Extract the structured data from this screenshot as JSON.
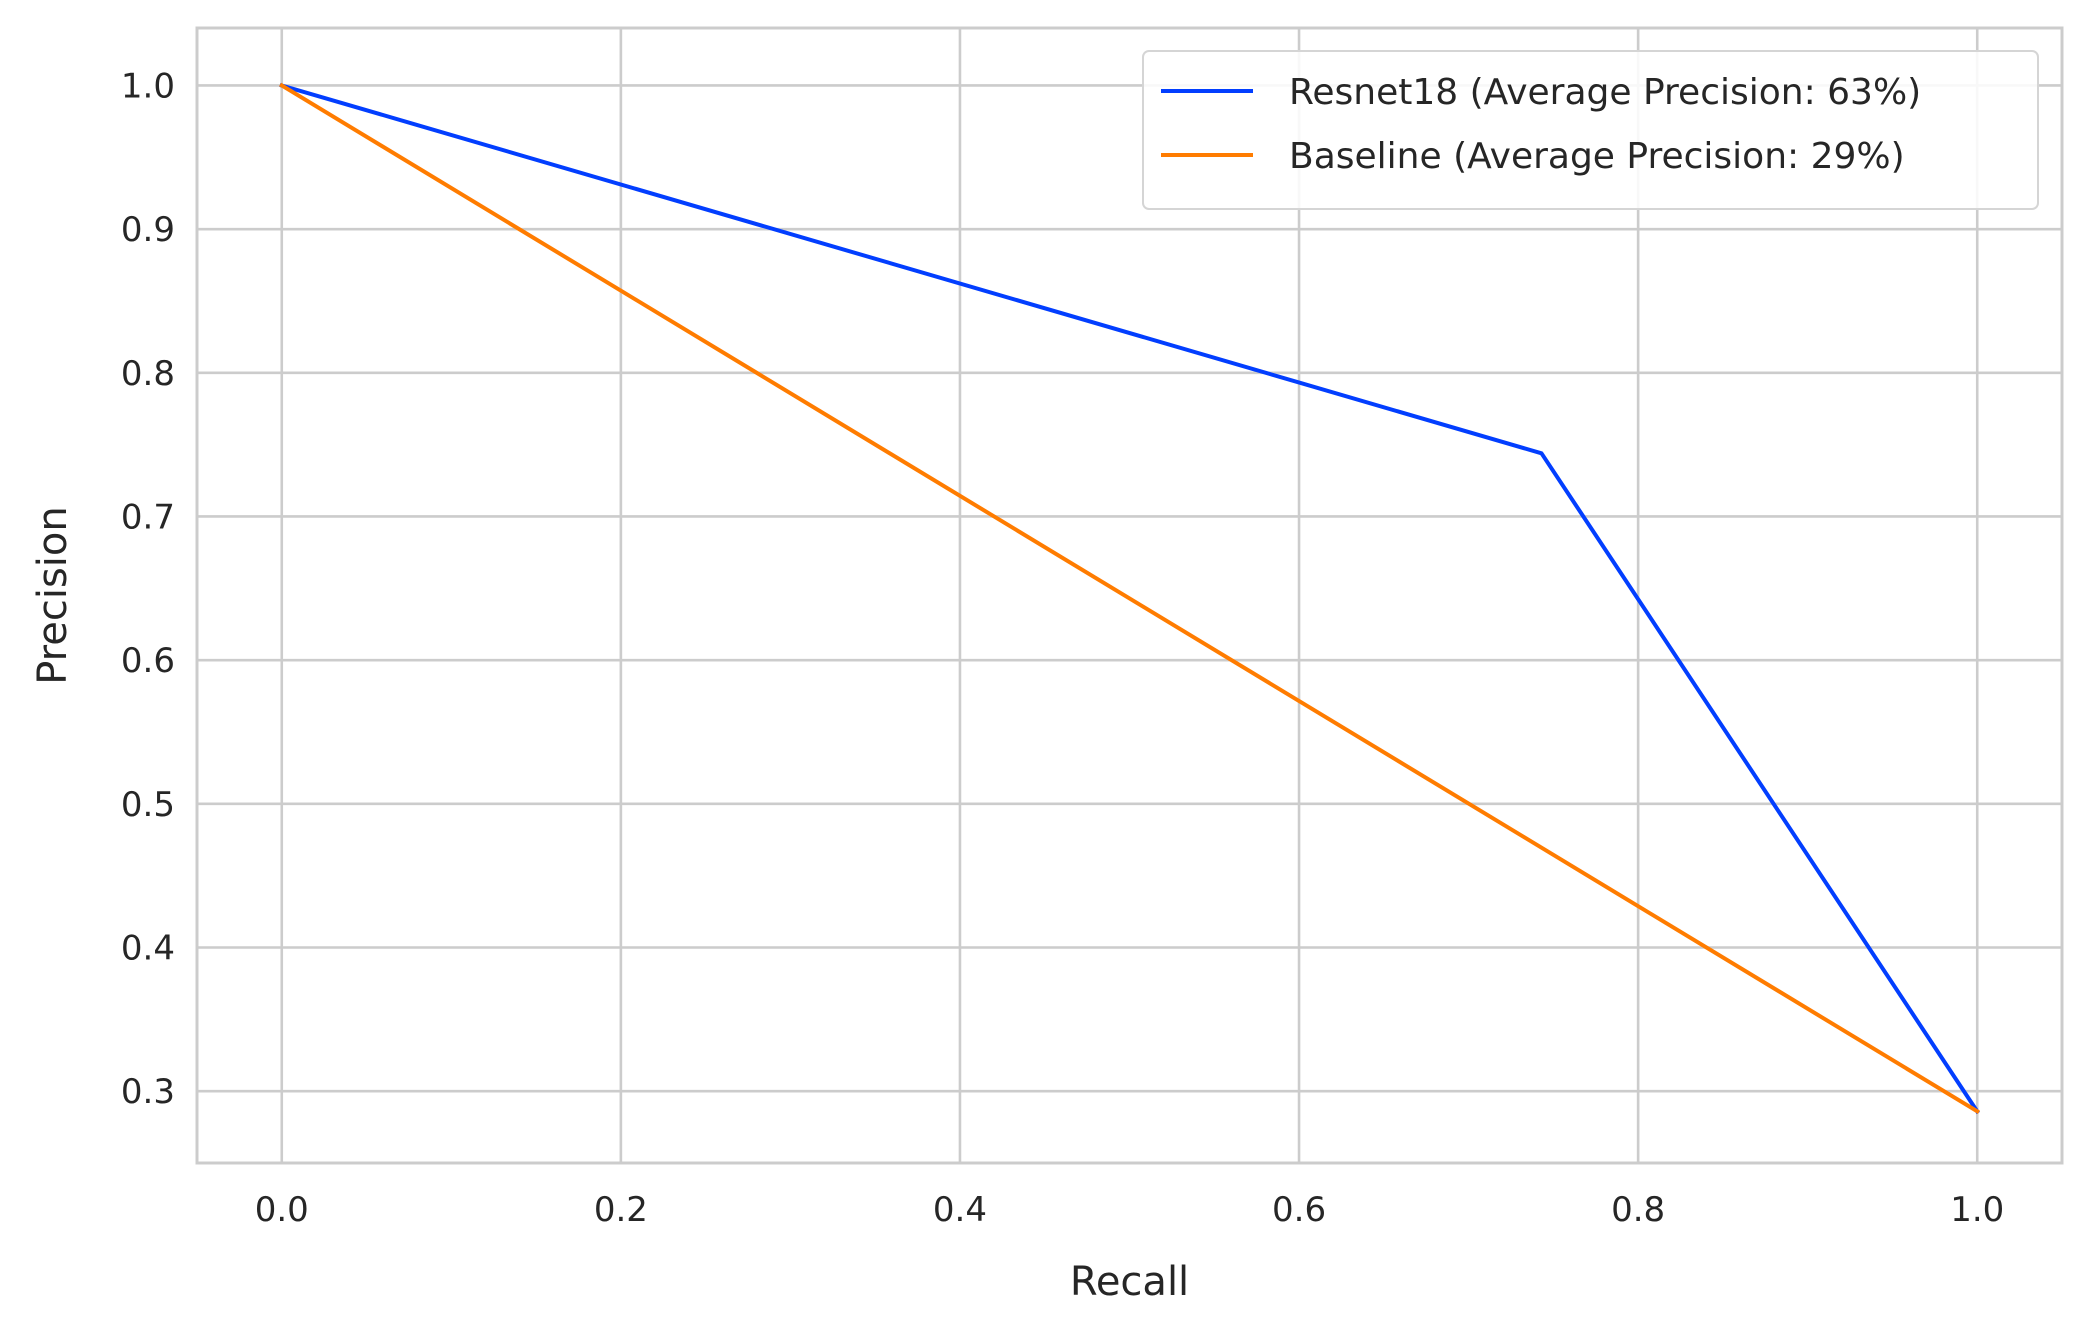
{
  "chart_data": {
    "type": "line",
    "xlabel": "Recall",
    "ylabel": "Precision",
    "xlim": [
      -0.05,
      1.05
    ],
    "ylim": [
      0.25,
      1.04
    ],
    "xticks": [
      0.0,
      0.2,
      0.4,
      0.6,
      0.8,
      1.0
    ],
    "xtick_labels": [
      "0.0",
      "0.2",
      "0.4",
      "0.6",
      "0.8",
      "1.0"
    ],
    "yticks": [
      0.3,
      0.4,
      0.5,
      0.6,
      0.7,
      0.8,
      0.9,
      1.0
    ],
    "ytick_labels": [
      "0.3",
      "0.4",
      "0.5",
      "0.6",
      "0.7",
      "0.8",
      "0.9",
      "1.0"
    ],
    "grid": true,
    "legend_position": "top-right",
    "series": [
      {
        "name": "Resnet18 (Average Precision: 63%)",
        "color": "#023EFF",
        "x": [
          0.0,
          0.743,
          1.0
        ],
        "y": [
          1.0,
          0.744,
          0.286
        ]
      },
      {
        "name": "Baseline (Average Precision: 29%)",
        "color": "#FF7C00",
        "x": [
          0.0,
          1.0
        ],
        "y": [
          1.0,
          0.286
        ]
      }
    ]
  }
}
